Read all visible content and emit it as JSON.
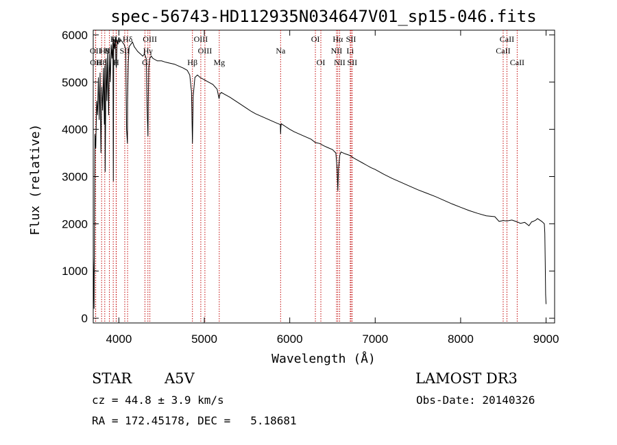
{
  "chart_data": {
    "type": "line",
    "title": "spec-56743-HD112935N034647V01_sp15-046.fits",
    "xlabel": "Wavelength (Å)",
    "ylabel": "Flux (relative)",
    "xlim": [
      3700,
      9100
    ],
    "ylim": [
      -100,
      6100
    ],
    "xticks": [
      4000,
      5000,
      6000,
      7000,
      8000,
      9000
    ],
    "yticks": [
      0,
      1000,
      2000,
      3000,
      4000,
      5000,
      6000
    ],
    "grid": false,
    "series": [
      {
        "name": "flux",
        "x": [
          3700,
          3705,
          3710,
          3720,
          3730,
          3740,
          3750,
          3760,
          3770,
          3780,
          3790,
          3800,
          3810,
          3820,
          3830,
          3835,
          3840,
          3850,
          3860,
          3870,
          3880,
          3890,
          3900,
          3910,
          3920,
          3930,
          3935,
          3940,
          3950,
          3960,
          3965,
          3970,
          3980,
          3990,
          4000,
          4010,
          4020,
          4040,
          4060,
          4080,
          4090,
          4100,
          4102,
          4110,
          4120,
          4140,
          4160,
          4180,
          4200,
          4220,
          4250,
          4280,
          4300,
          4320,
          4330,
          4340,
          4345,
          4350,
          4360,
          4380,
          4400,
          4450,
          4500,
          4550,
          4600,
          4650,
          4700,
          4750,
          4800,
          4830,
          4850,
          4861,
          4870,
          4890,
          4920,
          4950,
          5000,
          5050,
          5100,
          5150,
          5172,
          5183,
          5200,
          5250,
          5300,
          5350,
          5400,
          5450,
          5500,
          5550,
          5600,
          5650,
          5700,
          5750,
          5800,
          5850,
          5890,
          5893,
          5896,
          5900,
          5950,
          6000,
          6050,
          6100,
          6150,
          6200,
          6250,
          6300,
          6350,
          6400,
          6450,
          6500,
          6540,
          6555,
          6563,
          6570,
          6585,
          6600,
          6650,
          6700,
          6750,
          6800,
          6850,
          6900,
          6950,
          7000,
          7100,
          7200,
          7300,
          7400,
          7500,
          7600,
          7700,
          7800,
          7900,
          8000,
          8100,
          8200,
          8300,
          8400,
          8450,
          8498,
          8542,
          8600,
          8662,
          8700,
          8750,
          8800,
          8830,
          8850,
          8880,
          8900,
          8950,
          8980,
          8985,
          8990,
          8995,
          9000
        ],
        "y": [
          1300,
          900,
          200,
          3900,
          3600,
          4600,
          4300,
          5100,
          4200,
          5200,
          3500,
          4900,
          4400,
          5300,
          4100,
          5350,
          3100,
          5500,
          4600,
          5700,
          4300,
          5600,
          5000,
          5800,
          5500,
          5850,
          2900,
          5900,
          5700,
          5950,
          5400,
          5300,
          5900,
          5800,
          5950,
          5850,
          5900,
          5850,
          5800,
          5700,
          4000,
          3700,
          4600,
          5400,
          5750,
          5800,
          5850,
          5750,
          5700,
          5650,
          5600,
          5550,
          5600,
          5500,
          4500,
          3850,
          4700,
          5300,
          5500,
          5550,
          5500,
          5450,
          5450,
          5420,
          5400,
          5380,
          5340,
          5300,
          5250,
          5150,
          4800,
          3700,
          4700,
          5100,
          5150,
          5100,
          5050,
          5000,
          4950,
          4850,
          4650,
          4750,
          4780,
          4730,
          4680,
          4620,
          4560,
          4500,
          4440,
          4380,
          4330,
          4290,
          4250,
          4210,
          4170,
          4130,
          4100,
          3900,
          4050,
          4120,
          4060,
          4000,
          3950,
          3910,
          3870,
          3830,
          3790,
          3720,
          3700,
          3650,
          3610,
          3570,
          3500,
          3150,
          2700,
          3150,
          3450,
          3520,
          3480,
          3450,
          3390,
          3340,
          3290,
          3240,
          3190,
          3150,
          3050,
          2960,
          2880,
          2800,
          2720,
          2650,
          2580,
          2500,
          2420,
          2350,
          2280,
          2220,
          2170,
          2150,
          2050,
          2070,
          2060,
          2080,
          2040,
          2010,
          2030,
          1960,
          2040,
          2050,
          2080,
          2110,
          2050,
          2000,
          1800,
          1200,
          500,
          300
        ]
      }
    ],
    "lines": [
      {
        "name": "Hε",
        "x": 3970,
        "row": 0
      },
      {
        "name": "K",
        "x": 3934,
        "row": 0
      },
      {
        "name": "Hδ",
        "x": 4102,
        "row": 0
      },
      {
        "name": "OIII",
        "x": 4363,
        "row": 0
      },
      {
        "name": "OIII",
        "x": 4959,
        "row": 0
      },
      {
        "name": "OI",
        "x": 6300,
        "row": 0
      },
      {
        "name": "Hα",
        "x": 6563,
        "row": 0
      },
      {
        "name": "SII",
        "x": 6717,
        "row": 0
      },
      {
        "name": "CaII",
        "x": 8542,
        "row": 0
      },
      {
        "name": "OII",
        "x": 3727,
        "row": 1
      },
      {
        "name": "H9",
        "x": 3835,
        "row": 1
      },
      {
        "name": "He",
        "x": 3889,
        "row": 1
      },
      {
        "name": "SII",
        "x": 4069,
        "row": 1
      },
      {
        "name": "Hγ",
        "x": 4340,
        "row": 1
      },
      {
        "name": "OIII",
        "x": 5007,
        "row": 1
      },
      {
        "name": "Na",
        "x": 5893,
        "row": 1
      },
      {
        "name": "NII",
        "x": 6548,
        "row": 1
      },
      {
        "name": "Li",
        "x": 6708,
        "row": 1
      },
      {
        "name": "CaII",
        "x": 8498,
        "row": 1
      },
      {
        "name": "OII",
        "x": 3729,
        "row": 2
      },
      {
        "name": "H8",
        "x": 3798,
        "row": 2
      },
      {
        "name": "H",
        "x": 3968,
        "row": 2
      },
      {
        "name": "G",
        "x": 4305,
        "row": 2
      },
      {
        "name": "Hβ",
        "x": 4861,
        "row": 2
      },
      {
        "name": "Mg",
        "x": 5175,
        "row": 2
      },
      {
        "name": "OI",
        "x": 6364,
        "row": 2
      },
      {
        "name": "NII",
        "x": 6584,
        "row": 2
      },
      {
        "name": "SII",
        "x": 6731,
        "row": 2
      },
      {
        "name": "CaII",
        "x": 8662,
        "row": 2
      }
    ]
  },
  "info": {
    "object_class": "STAR",
    "subclass": "A5V",
    "survey": "LAMOST DR3",
    "redshift": "cz = 44.8 ± 3.9 km/s",
    "obs_date": "Obs-Date: 20140326",
    "coords": "RA = 172.45178, DEC =   5.18681"
  }
}
